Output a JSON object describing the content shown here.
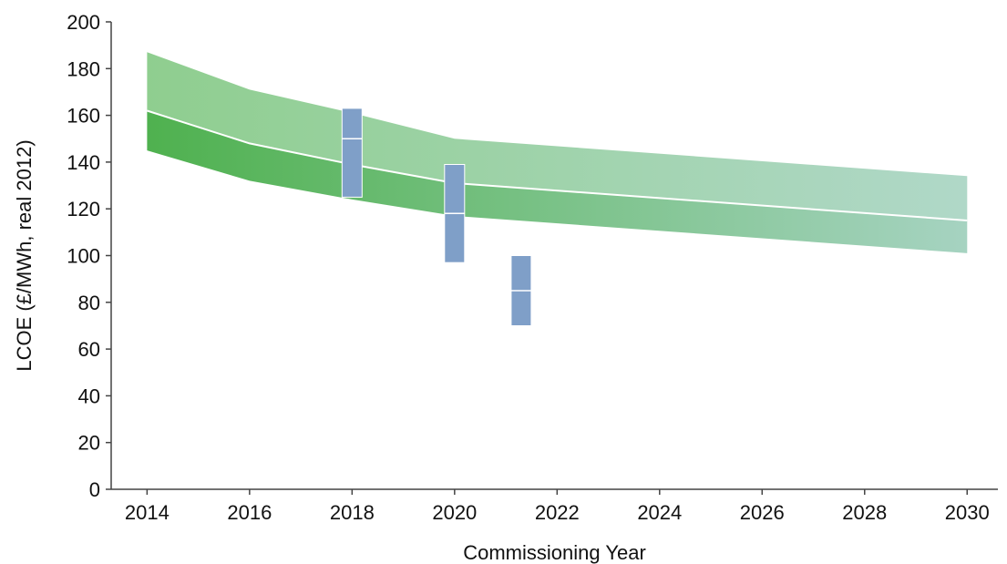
{
  "chart_data": {
    "type": "area",
    "xlabel": "Commissioning Year",
    "ylabel": "LCOE (£/MWh, real 2012)",
    "xlim": [
      2013.3,
      2030.6
    ],
    "ylim": [
      0,
      200
    ],
    "x_ticks": [
      "2014",
      "2016",
      "2018",
      "2020",
      "2022",
      "2024",
      "2026",
      "2028",
      "2030"
    ],
    "y_ticks": [
      "0",
      "20",
      "40",
      "60",
      "80",
      "100",
      "120",
      "140",
      "160",
      "180",
      "200"
    ],
    "grid": false,
    "legend": "none",
    "bands": [
      {
        "x": [
          2014,
          2016,
          2018,
          2020,
          2030
        ],
        "lower": [
          162,
          148,
          139,
          131,
          115
        ],
        "upper": [
          187,
          171,
          161,
          150,
          134
        ],
        "fill_left": "#8fce8f",
        "fill_right": "#b0d8c8"
      },
      {
        "x": [
          2014,
          2016,
          2018,
          2020,
          2030
        ],
        "lower": [
          145,
          132,
          124,
          117,
          101
        ],
        "upper": [
          162,
          148,
          139,
          131,
          115
        ],
        "fill_left": "#4fb14f",
        "fill_right": "#a6d3c1"
      }
    ],
    "ranges": [
      {
        "x": 2018.0,
        "low": 125,
        "mid": 150,
        "high": 163
      },
      {
        "x": 2020.0,
        "low": 97,
        "mid": 118,
        "high": 139
      },
      {
        "x": 2021.3,
        "low": 70,
        "mid": 85,
        "high": 100
      }
    ],
    "range_color": "#7f9fc8",
    "divider_color": "#ffffff"
  }
}
